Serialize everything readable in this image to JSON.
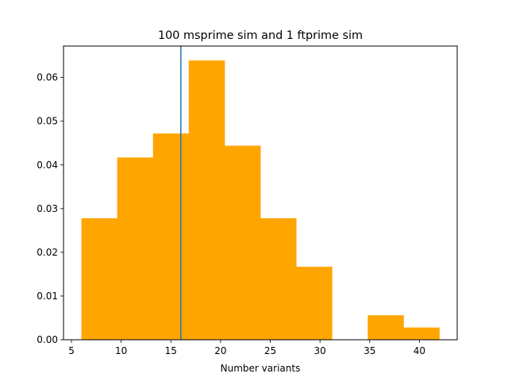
{
  "chart_data": {
    "type": "bar",
    "title": "100 msprime sim and 1 ftprime sim",
    "xlabel": "Number variants",
    "ylabel": "",
    "xlim": [
      4.2,
      43.8
    ],
    "ylim": [
      0.0,
      0.0672
    ],
    "xticks": [
      5,
      10,
      15,
      20,
      25,
      30,
      35,
      40
    ],
    "xtick_labels": [
      "5",
      "10",
      "15",
      "20",
      "25",
      "30",
      "35",
      "40"
    ],
    "yticks": [
      0.0,
      0.01,
      0.02,
      0.03,
      0.04,
      0.05,
      0.06
    ],
    "ytick_labels": [
      "0.00",
      "0.01",
      "0.02",
      "0.03",
      "0.04",
      "0.05",
      "0.06"
    ],
    "bin_edges": [
      6.0,
      9.6,
      13.2,
      16.8,
      20.4,
      24.0,
      27.6,
      31.2,
      34.8,
      38.4,
      42.0
    ],
    "values": [
      0.0278,
      0.0417,
      0.0472,
      0.0639,
      0.0444,
      0.0278,
      0.0167,
      0.0,
      0.0056,
      0.0028
    ],
    "bar_color": "#ffa500",
    "vline": {
      "x": 16.0,
      "color": "#1f77b4"
    },
    "grid": false
  }
}
